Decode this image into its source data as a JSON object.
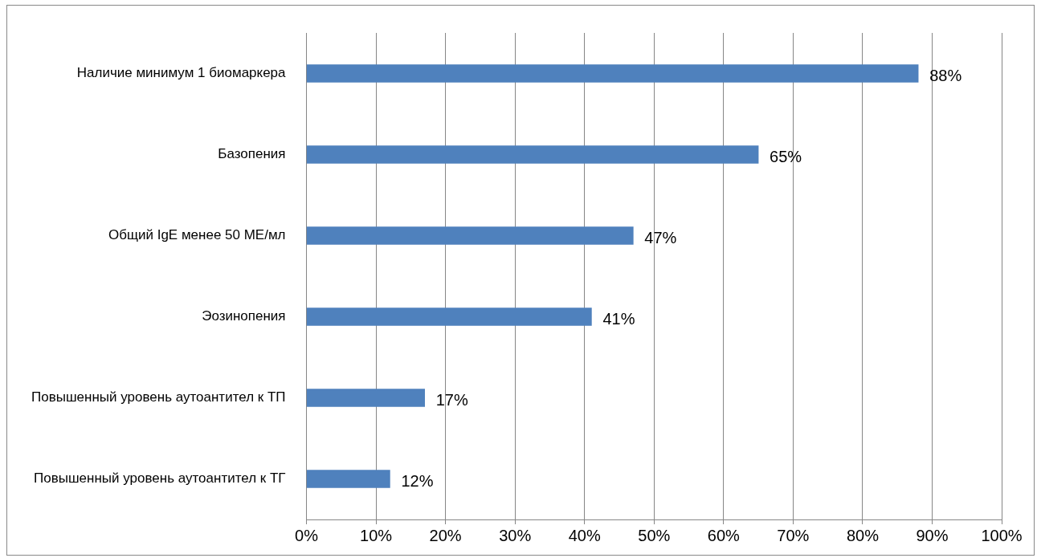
{
  "chart_data": {
    "type": "bar",
    "orientation": "horizontal",
    "categories": [
      "Наличие минимум 1 биомаркера",
      "Базопения",
      "Общий IgE менее 50 МЕ/мл",
      "Эозинопения",
      "Повышенный уровень аутоантител к ТП",
      "Повышенный уровень аутоантител к ТГ"
    ],
    "values": [
      88,
      65,
      47,
      41,
      17,
      12
    ],
    "value_labels": [
      "88%",
      "65%",
      "47%",
      "41%",
      "17%",
      "12%"
    ],
    "color": "#4f81bd",
    "xlim": [
      0,
      100
    ],
    "xticks": [
      {
        "value": 0,
        "label": "0%"
      },
      {
        "value": 10,
        "label": "10%"
      },
      {
        "value": 20,
        "label": "20%"
      },
      {
        "value": 30,
        "label": "30%"
      },
      {
        "value": 40,
        "label": "40%"
      },
      {
        "value": 50,
        "label": "50%"
      },
      {
        "value": 60,
        "label": "60%"
      },
      {
        "value": 70,
        "label": "70%"
      },
      {
        "value": 80,
        "label": "80%"
      },
      {
        "value": 90,
        "label": "90%"
      },
      {
        "value": 100,
        "label": "100%"
      }
    ],
    "grid": "x",
    "legend": false
  }
}
